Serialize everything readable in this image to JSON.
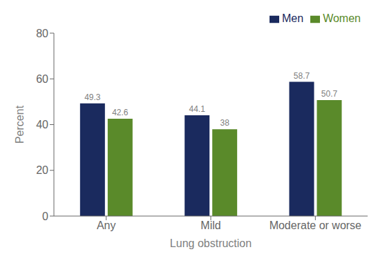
{
  "chart_data": {
    "type": "bar",
    "categories": [
      "Any",
      "Mild",
      "Moderate or worse"
    ],
    "series": [
      {
        "name": "Men",
        "color": "#1a2a5e",
        "values": [
          49.3,
          44.1,
          58.7
        ]
      },
      {
        "name": "Women",
        "color": "#5a8a2a",
        "values": [
          42.6,
          38.0,
          50.7
        ]
      }
    ],
    "xlabel": "Lung obstruction",
    "ylabel": "Percent",
    "ylim": [
      0,
      80
    ],
    "yticks": [
      0,
      20,
      40,
      60,
      80
    ],
    "data_labels": true,
    "legend": "upper right",
    "grid": false
  }
}
